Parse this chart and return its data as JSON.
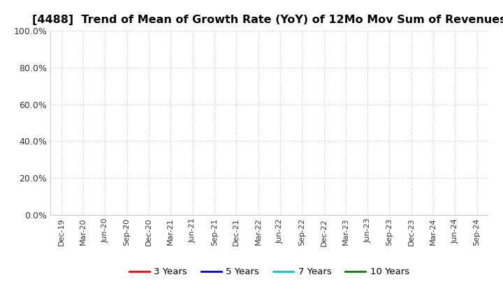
{
  "title": "[4488]  Trend of Mean of Growth Rate (YoY) of 12Mo Mov Sum of Revenues",
  "title_fontsize": 11.5,
  "title_fontweight": "bold",
  "background_color": "#ffffff",
  "plot_bg_color": "#ffffff",
  "ylim": [
    0.0,
    1.0
  ],
  "yticks": [
    0.0,
    0.2,
    0.4,
    0.6,
    0.8,
    1.0
  ],
  "ytick_labels": [
    "0.0%",
    "20.0%",
    "40.0%",
    "60.0%",
    "80.0%",
    "100.0%"
  ],
  "xtick_labels": [
    "Dec-19",
    "Mar-20",
    "Jun-20",
    "Sep-20",
    "Dec-20",
    "Mar-21",
    "Jun-21",
    "Sep-21",
    "Dec-21",
    "Mar-22",
    "Jun-22",
    "Sep-22",
    "Dec-22",
    "Mar-23",
    "Jun-23",
    "Sep-23",
    "Dec-23",
    "Mar-24",
    "Jun-24",
    "Sep-24"
  ],
  "grid_color": "#bbbbbb",
  "legend_entries": [
    {
      "label": "3 Years",
      "color": "#ff0000",
      "linewidth": 2.0
    },
    {
      "label": "5 Years",
      "color": "#0000dd",
      "linewidth": 2.0
    },
    {
      "label": "7 Years",
      "color": "#00cccc",
      "linewidth": 2.0
    },
    {
      "label": "10 Years",
      "color": "#008800",
      "linewidth": 2.0
    }
  ]
}
